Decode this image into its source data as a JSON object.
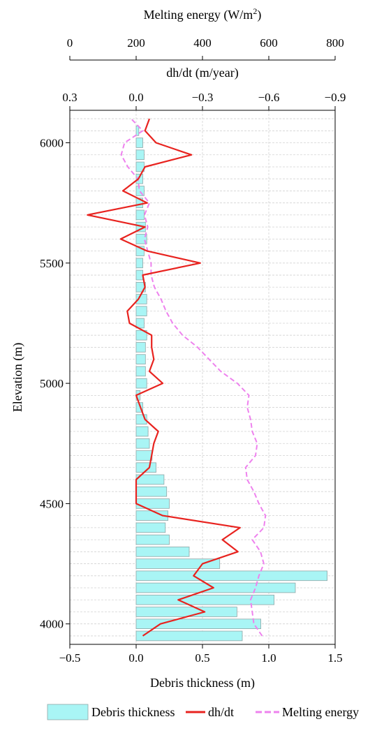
{
  "chart_data": {
    "type": "bar",
    "orientation": "horizontal",
    "grid": true,
    "legend_position": "bottom",
    "axes": {
      "y": {
        "label": "Elevation (m)",
        "range": [
          3915,
          6135
        ],
        "ticks": [
          4000,
          4500,
          5000,
          5500,
          6000
        ]
      },
      "x_bottom": {
        "label": "Debris thickness (m)",
        "range": [
          -0.5,
          1.5
        ],
        "ticks": [
          -0.5,
          0.0,
          0.5,
          1.0,
          1.5
        ],
        "tick_labels": [
          "−0.5",
          "0.0",
          "0.5",
          "1.0",
          "1.5"
        ]
      },
      "x_top_dhdt": {
        "label": "dh/dt (m/year)",
        "range": [
          0.3,
          -0.9
        ],
        "ticks": [
          0.3,
          0.0,
          -0.3,
          -0.6,
          -0.9
        ],
        "tick_labels": [
          "0.3",
          "0.0",
          "−0.3",
          "−0.6",
          "−0.9"
        ]
      },
      "x_top_energy": {
        "label": "Melting energy (W/m²)",
        "label_main": "Melting energy (W/m",
        "label_sup": "2",
        "label_end": ")",
        "range": [
          0,
          800
        ],
        "ticks": [
          0,
          200,
          400,
          600,
          800
        ],
        "tick_labels": [
          "0",
          "200",
          "400",
          "600",
          "800"
        ]
      }
    },
    "series": [
      {
        "name": "Debris thickness",
        "kind": "bar",
        "color": "#a9f5f5",
        "edge_color": "#8fa6a6",
        "elevations": [
          3950,
          4000,
          4050,
          4100,
          4150,
          4200,
          4250,
          4300,
          4350,
          4400,
          4450,
          4500,
          4550,
          4600,
          4650,
          4700,
          4750,
          4800,
          4850,
          4900,
          4950,
          5000,
          5050,
          5100,
          5150,
          5200,
          5250,
          5300,
          5350,
          5400,
          5450,
          5500,
          5550,
          5600,
          5650,
          5700,
          5750,
          5800,
          5850,
          5900,
          5950,
          6000,
          6050
        ],
        "values": [
          0.8,
          0.94,
          0.76,
          1.04,
          1.2,
          1.44,
          0.63,
          0.4,
          0.25,
          0.22,
          0.24,
          0.25,
          0.23,
          0.21,
          0.15,
          0.12,
          0.1,
          0.09,
          0.08,
          0.05,
          0.03,
          0.08,
          0.07,
          0.07,
          0.07,
          0.08,
          0.06,
          0.08,
          0.08,
          0.07,
          0.05,
          0.05,
          0.06,
          0.08,
          0.07,
          0.06,
          0.05,
          0.06,
          0.05,
          0.06,
          0.06,
          0.05,
          0.02
        ]
      },
      {
        "name": "dh/dt",
        "kind": "line",
        "color": "#e8231f",
        "elevations": [
          3950,
          4000,
          4050,
          4100,
          4150,
          4200,
          4250,
          4300,
          4350,
          4400,
          4450,
          4500,
          4550,
          4600,
          4650,
          4700,
          4750,
          4800,
          4850,
          4900,
          4950,
          5000,
          5050,
          5100,
          5150,
          5200,
          5250,
          5300,
          5350,
          5400,
          5450,
          5500,
          5550,
          5600,
          5650,
          5700,
          5750,
          5800,
          5850,
          5900,
          5950,
          6000,
          6050,
          6100
        ],
        "values": [
          -0.03,
          -0.11,
          -0.31,
          -0.19,
          -0.35,
          -0.26,
          -0.3,
          -0.46,
          -0.39,
          -0.47,
          -0.12,
          0.0,
          0.0,
          0.0,
          -0.06,
          -0.07,
          -0.08,
          -0.1,
          -0.04,
          -0.02,
          0.0,
          -0.12,
          -0.06,
          -0.08,
          -0.07,
          -0.07,
          0.03,
          0.04,
          -0.01,
          -0.04,
          -0.03,
          -0.29,
          -0.05,
          0.07,
          -0.04,
          0.22,
          -0.05,
          0.06,
          -0.01,
          -0.04,
          -0.25,
          -0.09,
          -0.04,
          -0.06
        ]
      },
      {
        "name": "Melting energy",
        "kind": "line",
        "style": "dashed",
        "color": "#ee82ee",
        "elevations": [
          3950,
          4000,
          4050,
          4100,
          4150,
          4200,
          4250,
          4300,
          4350,
          4400,
          4450,
          4500,
          4550,
          4600,
          4650,
          4700,
          4750,
          4800,
          4850,
          4900,
          4950,
          5000,
          5050,
          5100,
          5150,
          5200,
          5250,
          5300,
          5350,
          5400,
          5450,
          5500,
          5550,
          5600,
          5650,
          5700,
          5750,
          5800,
          5850,
          5900,
          5950,
          6000,
          6050,
          6100
        ],
        "values": [
          580,
          555,
          550,
          545,
          560,
          570,
          585,
          575,
          550,
          585,
          590,
          570,
          555,
          535,
          530,
          560,
          565,
          550,
          545,
          535,
          540,
          505,
          455,
          420,
          385,
          340,
          310,
          290,
          275,
          255,
          245,
          245,
          235,
          225,
          235,
          225,
          240,
          210,
          205,
          175,
          155,
          165,
          220,
          185
        ]
      }
    ]
  }
}
